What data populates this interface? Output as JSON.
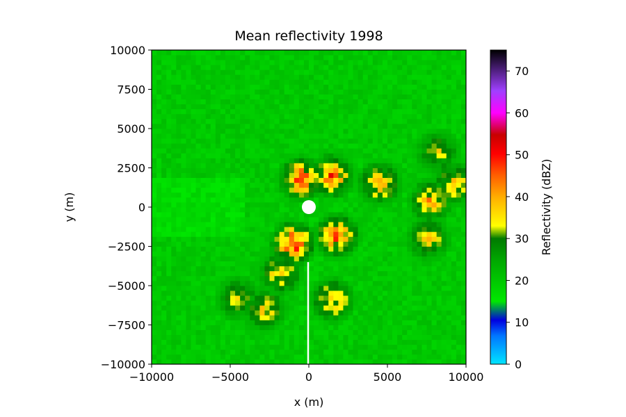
{
  "chart_data": {
    "type": "heatmap",
    "title": "Mean reflectivity 1998",
    "xlabel": "x (m)",
    "ylabel": "y (m)",
    "xlim": [
      -10000,
      10000
    ],
    "ylim": [
      -10000,
      10000
    ],
    "x_ticks": [
      -10000,
      -5000,
      0,
      5000,
      10000
    ],
    "x_tick_labels": [
      "−10000",
      "−5000",
      "0",
      "5000",
      "10000"
    ],
    "y_ticks": [
      10000,
      7500,
      5000,
      2500,
      0,
      -2500,
      -5000,
      -7500,
      -10000
    ],
    "y_tick_labels": [
      "10000",
      "7500",
      "5000",
      "2500",
      "0",
      "−2500",
      "−5000",
      "−7500",
      "−10000"
    ],
    "colorbar": {
      "label": "Reflectivity (dBZ)",
      "range": [
        0,
        75
      ],
      "ticks": [
        0,
        10,
        20,
        30,
        40,
        50,
        60,
        70
      ],
      "tick_labels": [
        "0",
        "10",
        "20",
        "30",
        "40",
        "50",
        "60",
        "70"
      ]
    },
    "background_dbz": 20,
    "features": [
      {
        "x": -500,
        "y": 1800,
        "dbz": 50
      },
      {
        "x": 1500,
        "y": 2000,
        "dbz": 48
      },
      {
        "x": 4500,
        "y": 1500,
        "dbz": 42
      },
      {
        "x": 7800,
        "y": 400,
        "dbz": 42
      },
      {
        "x": 9300,
        "y": 1500,
        "dbz": 40
      },
      {
        "x": 7600,
        "y": -2000,
        "dbz": 38
      },
      {
        "x": 8200,
        "y": 3500,
        "dbz": 36
      },
      {
        "x": 1500,
        "y": -5900,
        "dbz": 42
      },
      {
        "x": -1000,
        "y": -2300,
        "dbz": 52
      },
      {
        "x": 1800,
        "y": -1800,
        "dbz": 48
      },
      {
        "x": -2800,
        "y": -6500,
        "dbz": 38
      },
      {
        "x": -4500,
        "y": -5800,
        "dbz": 36
      },
      {
        "x": -1800,
        "y": -4200,
        "dbz": 40
      }
    ]
  }
}
